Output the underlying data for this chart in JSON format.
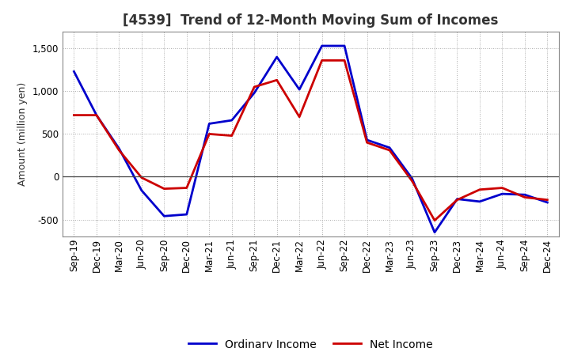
{
  "title": "[4539]  Trend of 12-Month Moving Sum of Incomes",
  "ylabel": "Amount (million yen)",
  "labels": [
    "Sep-19",
    "Dec-19",
    "Mar-20",
    "Jun-20",
    "Sep-20",
    "Dec-20",
    "Mar-21",
    "Jun-21",
    "Sep-21",
    "Dec-21",
    "Mar-22",
    "Jun-22",
    "Sep-22",
    "Dec-22",
    "Mar-23",
    "Jun-23",
    "Sep-23",
    "Dec-23",
    "Mar-24",
    "Jun-24",
    "Sep-24",
    "Dec-24"
  ],
  "ordinary_income": [
    1230,
    720,
    330,
    -160,
    -460,
    -440,
    620,
    660,
    980,
    1400,
    1020,
    1530,
    1530,
    430,
    340,
    -20,
    -650,
    -260,
    -290,
    -200,
    -210,
    -300
  ],
  "net_income": [
    720,
    720,
    310,
    -10,
    -140,
    -130,
    500,
    480,
    1050,
    1130,
    700,
    1360,
    1360,
    400,
    310,
    -50,
    -510,
    -270,
    -150,
    -130,
    -240,
    -270
  ],
  "ordinary_color": "#0000cc",
  "net_color": "#cc0000",
  "background_color": "#ffffff",
  "grid_color": "#aaaaaa",
  "ylim": [
    -700,
    1700
  ],
  "yticks": [
    -500,
    0,
    500,
    1000,
    1500
  ],
  "title_fontsize": 12,
  "legend_fontsize": 10,
  "axis_fontsize": 8.5,
  "ylabel_fontsize": 9,
  "title_color": "#333333",
  "line_width": 2.0
}
